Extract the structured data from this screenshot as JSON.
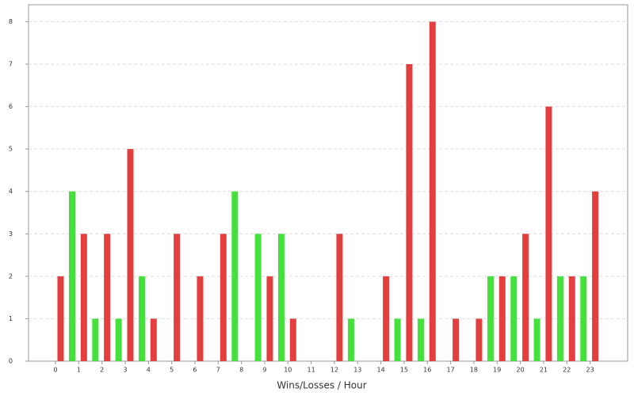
{
  "chart_data": {
    "type": "bar",
    "x_label": "Wins/Losses / Hour",
    "categories": [
      "0",
      "1",
      "2",
      "3",
      "4",
      "5",
      "6",
      "7",
      "8",
      "9",
      "10",
      "11",
      "12",
      "13",
      "14",
      "15",
      "16",
      "17",
      "18",
      "19",
      "20",
      "21",
      "22",
      "23"
    ],
    "series": [
      {
        "color": "#e53e3e",
        "values": [
          2,
          3,
          3,
          5,
          1,
          3,
          2,
          3,
          0,
          2,
          1,
          0,
          3,
          0,
          2,
          7,
          8,
          1,
          1,
          2,
          3,
          6,
          2,
          4
        ]
      },
      {
        "color": "#44e03c",
        "values": [
          4,
          1,
          1,
          2,
          0,
          0,
          0,
          4,
          3,
          3,
          0,
          0,
          1,
          0,
          1,
          1,
          0,
          0,
          2,
          2,
          1,
          2,
          2,
          0
        ]
      }
    ],
    "ylim": [
      0,
      8.4
    ],
    "yticks": [
      0,
      1,
      2,
      3,
      4,
      5,
      6,
      7,
      8
    ],
    "grid": true
  }
}
